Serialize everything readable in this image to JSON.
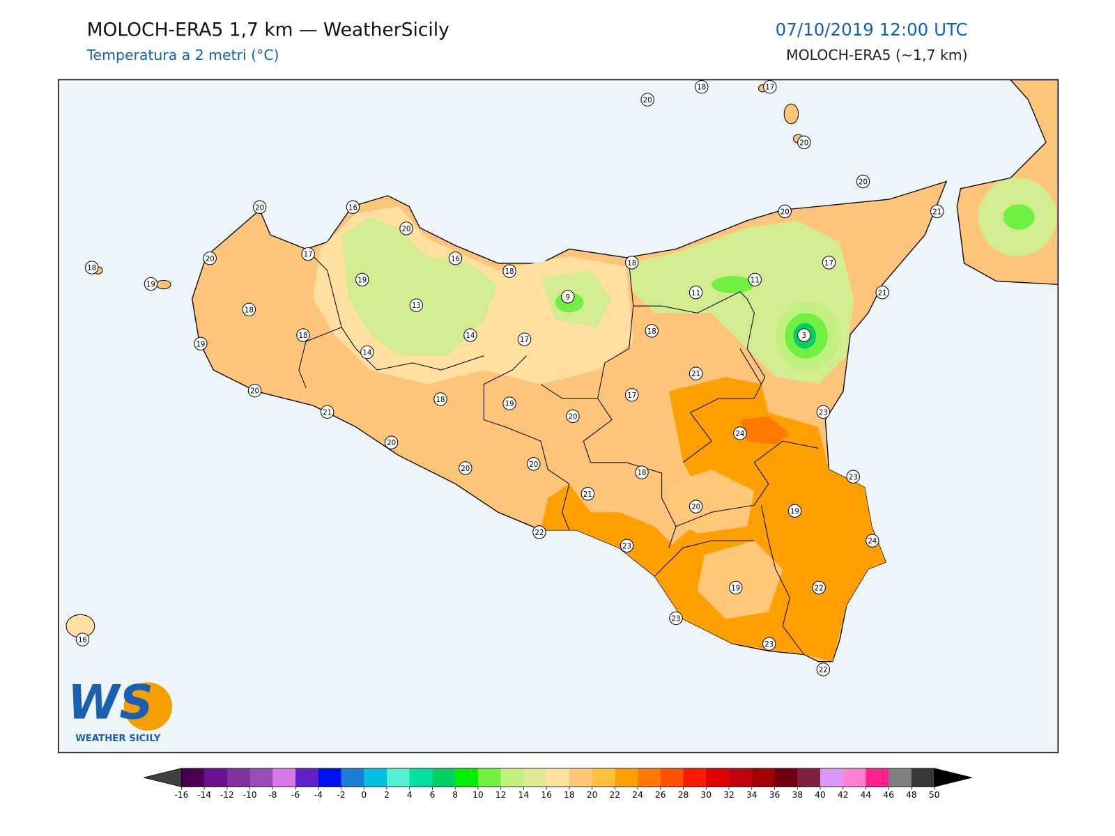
{
  "header": {
    "title": "MOLOCH-ERA5 1,7 km — WeatherSicily",
    "subtitle": "Temperatura a 2 metri (°C)",
    "datetime": "07/10/2019 12:00 UTC",
    "model": "MOLOCH-ERA5 (~1,7 km)"
  },
  "logo": {
    "mark": "WS",
    "text": "WEATHER SICILY"
  },
  "stations": [
    20,
    18,
    17,
    20,
    20,
    21,
    20,
    20,
    16,
    20,
    17,
    20,
    16,
    18,
    18,
    17,
    18,
    19,
    19,
    9,
    11,
    11,
    21,
    13,
    18,
    18,
    14,
    17,
    18,
    3,
    19,
    14,
    21,
    20,
    17,
    18,
    19,
    21,
    23,
    20,
    24,
    20,
    20,
    20,
    18,
    23,
    21,
    20,
    19,
    22,
    23,
    24,
    19,
    22,
    23,
    23,
    22,
    16
  ],
  "colorbar": {
    "ticks": [
      -16,
      -14,
      -12,
      -10,
      -8,
      -6,
      -4,
      -2,
      0,
      2,
      4,
      6,
      8,
      10,
      12,
      14,
      16,
      18,
      20,
      22,
      24,
      26,
      28,
      30,
      32,
      34,
      36,
      38,
      40,
      42,
      44,
      46,
      48,
      50
    ],
    "colors": [
      "#4a0050",
      "#6a1090",
      "#8030a0",
      "#9a4cb8",
      "#d878e8",
      "#6020c8",
      "#0010f0",
      "#1a7ed8",
      "#00c0e0",
      "#50f0d0",
      "#00e0a0",
      "#00d060",
      "#00f000",
      "#70f040",
      "#c0f080",
      "#e0e890",
      "#ffe0a0",
      "#ffc878",
      "#ffc040",
      "#ffa000",
      "#ff7800",
      "#ff5000",
      "#ff1800",
      "#e00000",
      "#c00010",
      "#a00000",
      "#700010",
      "#802040",
      "#d898f8",
      "#ff80d0",
      "#ff2090",
      "#808080",
      "#383838"
    ],
    "under": "#404040",
    "over": "#000000"
  }
}
